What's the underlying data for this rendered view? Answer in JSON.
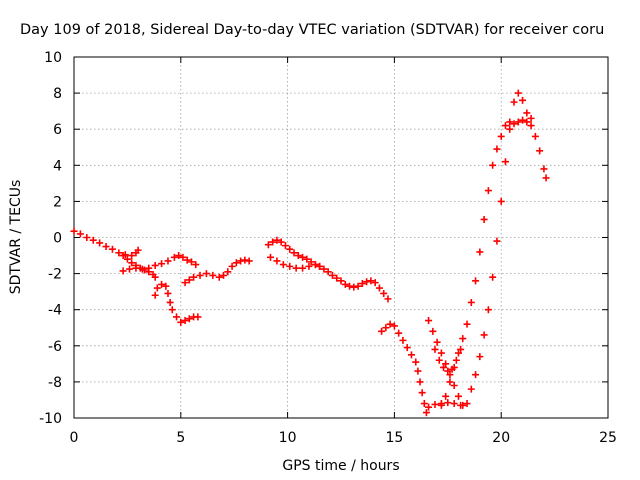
{
  "chart_data": {
    "type": "scatter",
    "title": "Day 109 of 2018, Sidereal Day-to-day VTEC variation (SDTVAR) for receiver coru",
    "xlabel": "GPS time / hours",
    "ylabel": "SDTVAR / TECUs",
    "xlim": [
      0,
      25
    ],
    "ylim": [
      -10,
      10
    ],
    "xticks": [
      0,
      5,
      10,
      15,
      20,
      25
    ],
    "yticks": [
      -10,
      -8,
      -6,
      -4,
      -2,
      0,
      2,
      4,
      6,
      8,
      10
    ],
    "grid": true,
    "legend": "none",
    "marker": "plus",
    "series_color": "#ff0000",
    "series": [
      {
        "points": [
          [
            0.0,
            0.35
          ],
          [
            0.3,
            0.2
          ],
          [
            0.6,
            0.0
          ],
          [
            0.9,
            -0.15
          ],
          [
            1.2,
            -0.3
          ],
          [
            1.5,
            -0.5
          ],
          [
            1.8,
            -0.65
          ],
          [
            2.1,
            -0.85
          ],
          [
            2.4,
            -0.95
          ],
          [
            2.7,
            -1.0
          ],
          [
            2.9,
            -0.85
          ],
          [
            3.0,
            -0.7
          ]
        ]
      },
      {
        "points": [
          [
            2.3,
            -1.0
          ],
          [
            2.5,
            -1.2
          ],
          [
            2.7,
            -1.4
          ],
          [
            2.9,
            -1.55
          ],
          [
            3.1,
            -1.7
          ],
          [
            3.3,
            -1.8
          ],
          [
            3.5,
            -1.9
          ],
          [
            3.7,
            -2.05
          ],
          [
            3.8,
            -2.2
          ]
        ]
      },
      {
        "points": [
          [
            2.3,
            -1.85
          ],
          [
            2.6,
            -1.75
          ],
          [
            2.9,
            -1.7
          ],
          [
            3.2,
            -1.75
          ],
          [
            3.5,
            -1.7
          ],
          [
            3.8,
            -1.55
          ],
          [
            4.1,
            -1.45
          ],
          [
            4.4,
            -1.3
          ],
          [
            4.7,
            -1.1
          ],
          [
            4.9,
            -1.0
          ],
          [
            5.1,
            -1.1
          ],
          [
            5.3,
            -1.25
          ],
          [
            5.5,
            -1.35
          ],
          [
            5.7,
            -1.5
          ]
        ]
      },
      {
        "points": [
          [
            3.8,
            -3.2
          ],
          [
            3.9,
            -2.8
          ],
          [
            4.1,
            -2.6
          ],
          [
            4.3,
            -2.7
          ],
          [
            4.4,
            -3.1
          ],
          [
            4.5,
            -3.6
          ],
          [
            4.6,
            -4.0
          ],
          [
            4.8,
            -4.4
          ],
          [
            5.0,
            -4.7
          ],
          [
            5.2,
            -4.6
          ],
          [
            5.4,
            -4.5
          ],
          [
            5.6,
            -4.4
          ],
          [
            5.8,
            -4.4
          ]
        ]
      },
      {
        "points": [
          [
            5.2,
            -2.5
          ],
          [
            5.4,
            -2.35
          ],
          [
            5.6,
            -2.2
          ],
          [
            5.9,
            -2.1
          ],
          [
            6.2,
            -2.0
          ],
          [
            6.5,
            -2.1
          ],
          [
            6.8,
            -2.2
          ],
          [
            7.0,
            -2.1
          ],
          [
            7.2,
            -1.9
          ],
          [
            7.4,
            -1.6
          ],
          [
            7.6,
            -1.4
          ],
          [
            7.8,
            -1.3
          ],
          [
            8.0,
            -1.25
          ],
          [
            8.2,
            -1.3
          ]
        ]
      },
      {
        "points": [
          [
            9.1,
            -0.4
          ],
          [
            9.3,
            -0.25
          ],
          [
            9.5,
            -0.15
          ],
          [
            9.7,
            -0.25
          ],
          [
            9.9,
            -0.45
          ],
          [
            10.1,
            -0.65
          ],
          [
            10.3,
            -0.85
          ],
          [
            10.5,
            -1.0
          ],
          [
            10.7,
            -1.1
          ],
          [
            10.9,
            -1.2
          ],
          [
            11.1,
            -1.35
          ],
          [
            11.3,
            -1.5
          ],
          [
            11.5,
            -1.6
          ]
        ]
      },
      {
        "points": [
          [
            9.2,
            -1.1
          ],
          [
            9.5,
            -1.3
          ],
          [
            9.8,
            -1.5
          ],
          [
            10.1,
            -1.6
          ],
          [
            10.4,
            -1.7
          ],
          [
            10.7,
            -1.7
          ],
          [
            11.0,
            -1.6
          ],
          [
            11.3,
            -1.5
          ],
          [
            11.5,
            -1.6
          ],
          [
            11.7,
            -1.75
          ],
          [
            11.9,
            -1.9
          ],
          [
            12.1,
            -2.1
          ],
          [
            12.3,
            -2.25
          ],
          [
            12.5,
            -2.4
          ],
          [
            12.7,
            -2.6
          ],
          [
            12.9,
            -2.7
          ],
          [
            13.1,
            -2.75
          ],
          [
            13.3,
            -2.7
          ],
          [
            13.5,
            -2.55
          ],
          [
            13.7,
            -2.45
          ],
          [
            13.9,
            -2.4
          ],
          [
            14.1,
            -2.5
          ],
          [
            14.3,
            -2.8
          ],
          [
            14.5,
            -3.1
          ],
          [
            14.7,
            -3.4
          ]
        ]
      },
      {
        "points": [
          [
            14.4,
            -5.2
          ],
          [
            14.6,
            -5.0
          ],
          [
            14.8,
            -4.8
          ],
          [
            15.0,
            -4.9
          ],
          [
            15.2,
            -5.3
          ],
          [
            15.4,
            -5.7
          ],
          [
            15.6,
            -6.1
          ],
          [
            15.8,
            -6.5
          ],
          [
            16.0,
            -6.9
          ],
          [
            16.1,
            -7.4
          ],
          [
            16.2,
            -8.0
          ],
          [
            16.3,
            -8.6
          ],
          [
            16.4,
            -9.2
          ],
          [
            16.5,
            -9.7
          ]
        ]
      },
      {
        "points": [
          [
            16.6,
            -9.4
          ],
          [
            16.9,
            -9.25
          ],
          [
            17.2,
            -9.2
          ],
          [
            17.5,
            -9.15
          ],
          [
            17.8,
            -9.2
          ],
          [
            18.1,
            -9.3
          ]
        ]
      },
      {
        "points": [
          [
            16.6,
            -4.6
          ],
          [
            16.8,
            -5.2
          ],
          [
            17.0,
            -5.8
          ],
          [
            17.2,
            -6.4
          ],
          [
            17.4,
            -7.0
          ],
          [
            17.6,
            -7.6
          ],
          [
            17.8,
            -8.2
          ],
          [
            18.0,
            -8.8
          ],
          [
            18.2,
            -9.3
          ],
          [
            18.4,
            -9.2
          ],
          [
            18.6,
            -8.4
          ],
          [
            18.8,
            -7.6
          ],
          [
            19.0,
            -6.6
          ],
          [
            19.2,
            -5.4
          ],
          [
            19.4,
            -4.0
          ],
          [
            19.6,
            -2.2
          ],
          [
            19.8,
            -0.2
          ],
          [
            20.0,
            2.0
          ],
          [
            20.2,
            4.2
          ],
          [
            20.4,
            6.0
          ],
          [
            20.6,
            7.5
          ],
          [
            20.8,
            8.0
          ],
          [
            21.0,
            7.6
          ],
          [
            21.2,
            6.9
          ],
          [
            21.4,
            6.2
          ],
          [
            21.6,
            5.6
          ],
          [
            21.8,
            4.8
          ],
          [
            22.0,
            3.8
          ],
          [
            22.1,
            3.3
          ]
        ]
      },
      {
        "points": [
          [
            17.2,
            -9.3
          ],
          [
            17.4,
            -8.8
          ],
          [
            17.6,
            -8.0
          ],
          [
            17.8,
            -7.2
          ],
          [
            18.0,
            -6.4
          ],
          [
            18.2,
            -5.6
          ],
          [
            18.4,
            -4.8
          ],
          [
            18.6,
            -3.6
          ],
          [
            18.8,
            -2.4
          ],
          [
            19.0,
            -0.8
          ],
          [
            19.2,
            1.0
          ],
          [
            19.4,
            2.6
          ],
          [
            19.6,
            4.0
          ],
          [
            19.8,
            4.9
          ],
          [
            20.0,
            5.6
          ],
          [
            20.2,
            6.2
          ],
          [
            20.4,
            6.4
          ],
          [
            20.6,
            6.3
          ],
          [
            20.8,
            6.4
          ],
          [
            21.0,
            6.5
          ],
          [
            21.2,
            6.4
          ],
          [
            21.4,
            6.6
          ]
        ]
      },
      {
        "points": [
          [
            16.9,
            -6.2
          ],
          [
            17.1,
            -6.8
          ],
          [
            17.3,
            -7.2
          ],
          [
            17.5,
            -7.4
          ],
          [
            17.7,
            -7.3
          ],
          [
            17.9,
            -6.8
          ],
          [
            18.1,
            -6.2
          ]
        ]
      }
    ]
  }
}
